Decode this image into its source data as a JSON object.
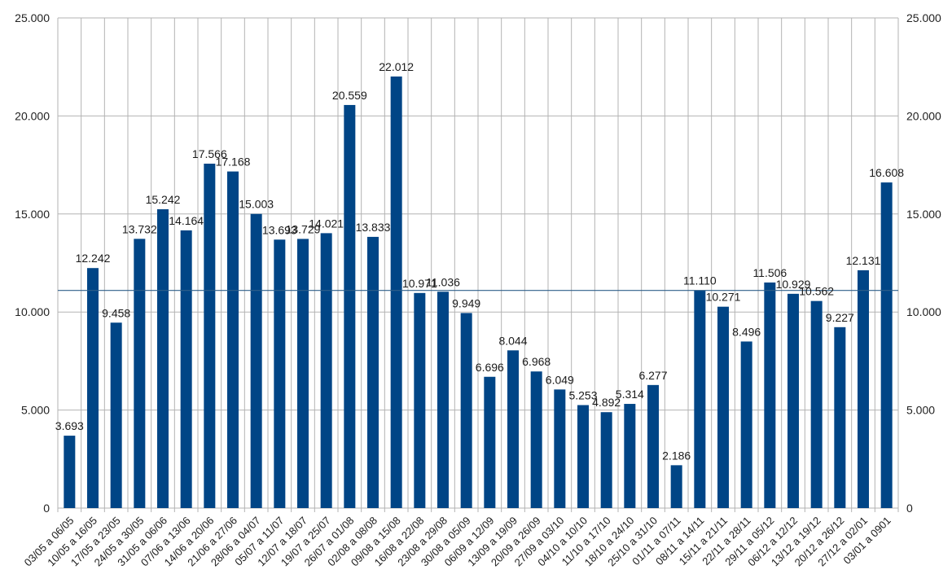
{
  "chart_data": {
    "type": "bar",
    "title": "",
    "xlabel": "",
    "ylabel": "",
    "ylim": [
      0,
      25000
    ],
    "yticks": [
      0,
      5000,
      10000,
      15000,
      20000,
      25000
    ],
    "ytick_labels": [
      "0",
      "5.000",
      "10.000",
      "15.000",
      "20.000",
      "25.000"
    ],
    "y_axis_both_sides": true,
    "grid": true,
    "legend": "none",
    "bar_color": "#004586",
    "reference_line": {
      "value": 11100,
      "color": "#2f5f8a"
    },
    "categories": [
      "03/05 a 06/05",
      "10/05 a 16/05",
      "17/05 a 23/05",
      "24/05 a 30/05",
      "31/05 a 06/06",
      "07/06 a 13/06",
      "14/06 a 20/06",
      "21/06 a 27/06",
      "28/06 a 04/07",
      "05/07 a 11/07",
      "12/07 a 18/07",
      "19/07 a 25/07",
      "26/07 a 01/08",
      "02/08 a 08/08",
      "09/08 a 15/08",
      "16/08 a 22/08",
      "23/08 a 29/08",
      "30/08 a 05/09",
      "06/09 a 12/09",
      "13/09 a 19/09",
      "20/09 a 26/09",
      "27/09 a 03/10",
      "04/10 a 10/10",
      "11/10 a 17/10",
      "18/10 a 24/10",
      "25/10 a 31/10",
      "01/11 a 07/11",
      "08/11 a 14/11",
      "15/11 a 21/11",
      "22/11 a 28/11",
      "29/11 a 05/12",
      "06/12 a 12/12",
      "13/12 a 19/12",
      "20/12 a 26/12",
      "27/12 a 02/01",
      "03/01 a 0901"
    ],
    "values": [
      3693,
      12242,
      9458,
      13732,
      15242,
      14164,
      17566,
      17168,
      15003,
      13693,
      13729,
      14021,
      20559,
      13833,
      22012,
      10971,
      11036,
      9949,
      6696,
      8044,
      6968,
      6049,
      5253,
      4892,
      5314,
      6277,
      2186,
      11110,
      10271,
      8496,
      11506,
      10929,
      10562,
      9227,
      12131,
      16608
    ],
    "value_labels": [
      "3.693",
      "12.242",
      "9.458",
      "13.732",
      "15.242",
      "14.164",
      "17.566",
      "17.168",
      "15.003",
      "13.693",
      "13.729",
      "14.021",
      "20.559",
      "13.833",
      "22.012",
      "10.971",
      "11.036",
      "9.949",
      "6.696",
      "8.044",
      "6.968",
      "6.049",
      "5.253",
      "4.892",
      "5.314",
      "6.277",
      "2.186",
      "11.110",
      "10.271",
      "8.496",
      "11.506",
      "10.929",
      "10.562",
      "9.227",
      "12.131",
      "16.608"
    ]
  }
}
